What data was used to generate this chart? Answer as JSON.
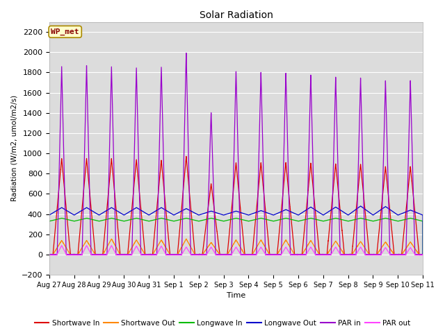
{
  "title": "Solar Radiation",
  "ylabel": "Radiation (W/m2, umol/m2/s)",
  "xlabel": "Time",
  "ylim": [
    -200,
    2300
  ],
  "yticks": [
    -200,
    0,
    200,
    400,
    600,
    800,
    1000,
    1200,
    1400,
    1600,
    1800,
    2000,
    2200
  ],
  "bg_color": "#dcdcdc",
  "n_days": 15,
  "day_labels": [
    "Aug 27",
    "Aug 28",
    "Aug 29",
    "Aug 30",
    "Aug 31",
    "Sep 1",
    "Sep 2",
    "Sep 3",
    "Sep 4",
    "Sep 5",
    "Sep 6",
    "Sep 7",
    "Sep 8",
    "Sep 9",
    "Sep 10",
    "Sep 11"
  ],
  "shortwave_in_peaks": [
    950,
    950,
    950,
    940,
    935,
    970,
    700,
    910,
    910,
    910,
    905,
    900,
    895,
    870,
    870
  ],
  "shortwave_out_peaks": [
    140,
    140,
    155,
    145,
    145,
    155,
    120,
    145,
    145,
    145,
    140,
    135,
    130,
    125,
    125
  ],
  "longwave_in_base": 330,
  "longwave_out_base": 390,
  "longwave_out_peaks": [
    465,
    465,
    465,
    465,
    465,
    455,
    430,
    430,
    435,
    445,
    470,
    470,
    480,
    475,
    440
  ],
  "par_in_peaks": [
    1860,
    1870,
    1860,
    1850,
    1860,
    2000,
    1410,
    1820,
    1810,
    1800,
    1780,
    1760,
    1750,
    1720,
    1720
  ],
  "par_out_peaks": [
    95,
    95,
    95,
    90,
    90,
    80,
    80,
    80,
    80,
    80,
    80,
    80,
    80,
    75,
    75
  ],
  "colors": {
    "shortwave_in": "#dd0000",
    "shortwave_out": "#ff8800",
    "longwave_in": "#00bb00",
    "longwave_out": "#0000cc",
    "par_in": "#9900cc",
    "par_out": "#ff44ff"
  },
  "labels": {
    "shortwave_in": "Shortwave In",
    "shortwave_out": "Shortwave Out",
    "longwave_in": "Longwave In",
    "longwave_out": "Longwave Out",
    "par_in": "PAR in",
    "par_out": "PAR out"
  }
}
